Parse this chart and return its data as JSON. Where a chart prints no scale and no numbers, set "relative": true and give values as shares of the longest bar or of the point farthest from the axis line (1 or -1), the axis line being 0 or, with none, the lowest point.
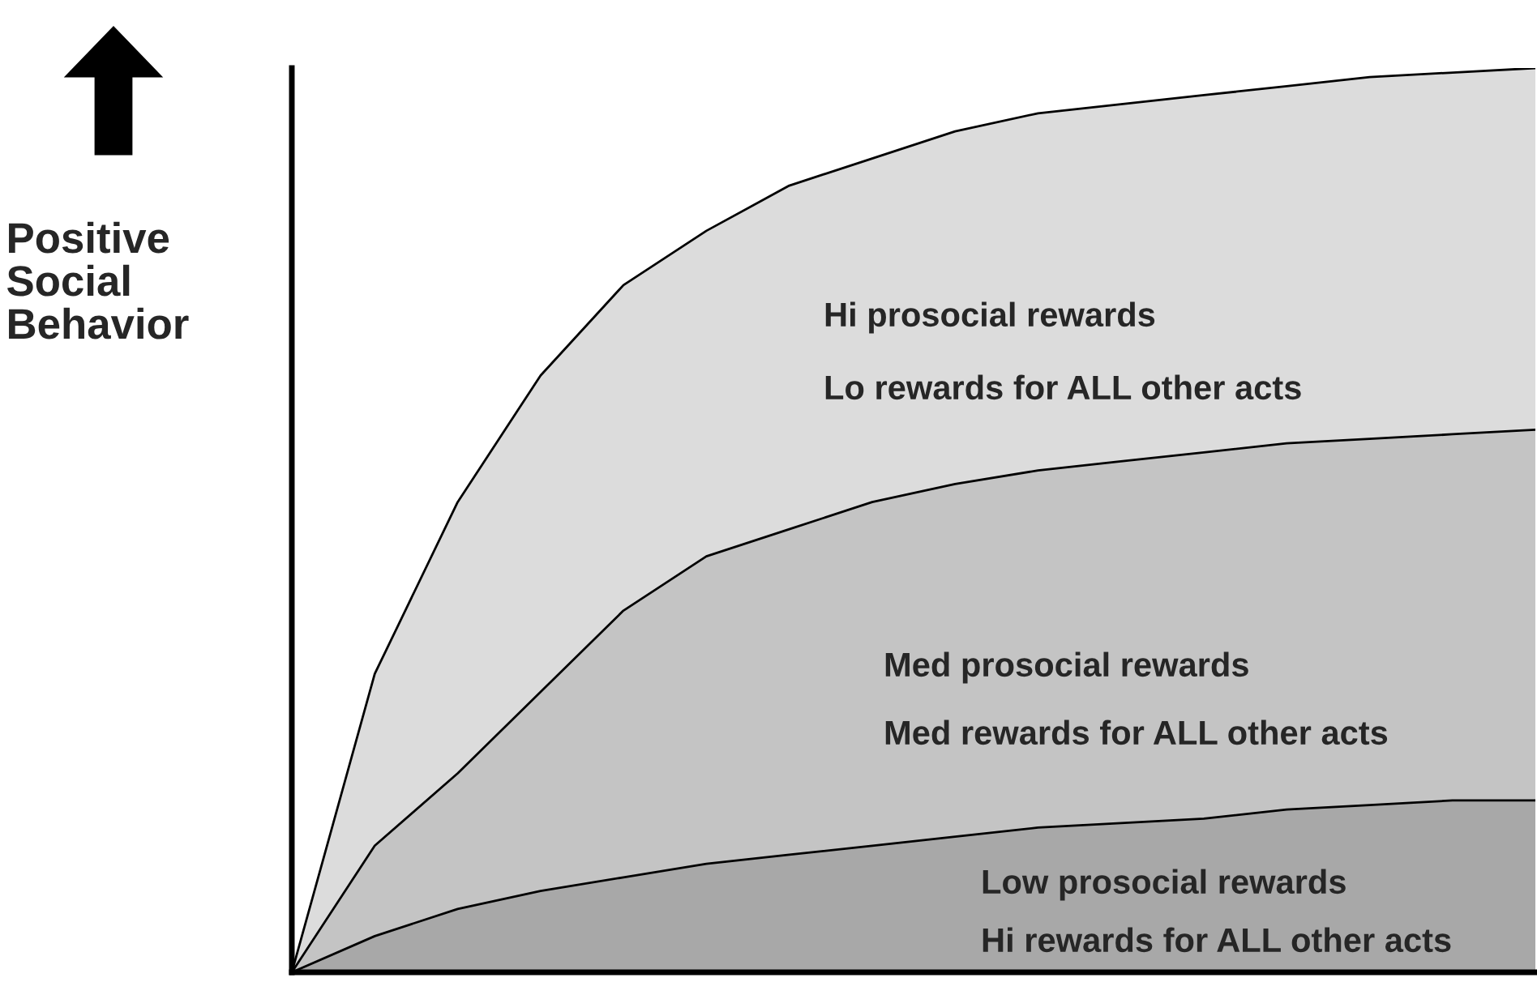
{
  "chart_data": {
    "type": "area",
    "relative": true,
    "ylabel": "Positive\nSocial\nBehavior",
    "categories": [
      null,
      null,
      null,
      null,
      null,
      null,
      null,
      null,
      null,
      null,
      null,
      null,
      null,
      null,
      null,
      null
    ],
    "series": [
      {
        "color": "#dcdcdc",
        "values": [
          0,
          0.33,
          0.52,
          0.66,
          0.76,
          0.82,
          0.87,
          0.9,
          0.93,
          0.95,
          0.96,
          0.97,
          0.98,
          0.99,
          0.995,
          1
        ]
      },
      {
        "color": "#c4c4c4",
        "values": [
          0,
          0.14,
          0.22,
          0.31,
          0.4,
          0.46,
          0.49,
          0.52,
          0.54,
          0.555,
          0.565,
          0.575,
          0.585,
          0.59,
          0.595,
          0.6
        ]
      },
      {
        "color": "#a8a8a8",
        "values": [
          0,
          0.04,
          0.07,
          0.09,
          0.105,
          0.12,
          0.13,
          0.14,
          0.15,
          0.16,
          0.165,
          0.17,
          0.18,
          0.185,
          0.19,
          0.19
        ]
      }
    ],
    "annotations": [
      "Hi prosocial rewards",
      "Lo rewards for ALL other acts",
      "Med prosocial rewards",
      "Med rewards for ALL other acts",
      "Low prosocial rewards",
      "Hi rewards for ALL other acts"
    ],
    "grid": false,
    "legend": false
  }
}
